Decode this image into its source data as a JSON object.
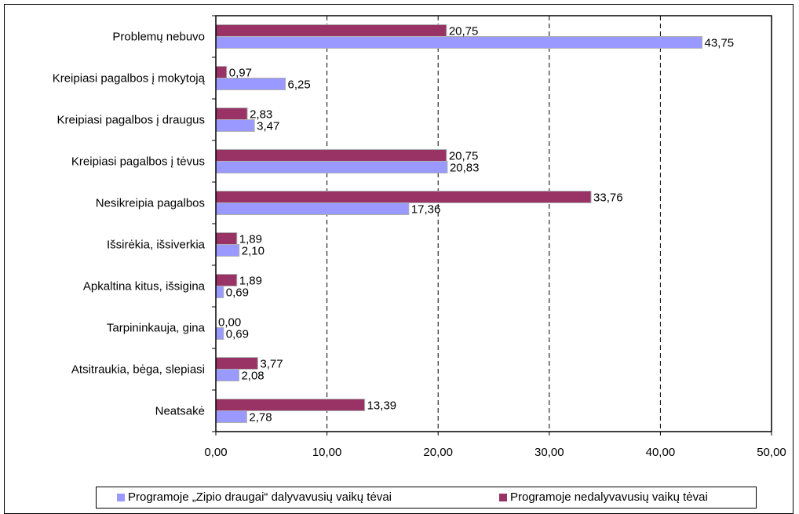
{
  "chart_data": {
    "type": "bar",
    "orientation": "horizontal",
    "categories": [
      "Problemų nebuvo",
      "Kreipiasi pagalbos į mokytoją",
      "Kreipiasi pagalbos į draugus",
      "Kreipiasi pagalbos į tėvus",
      "Nesikreipia pagalbos",
      "Išsirėkia, išsiverkia",
      "Apkaltina kitus, išsigina",
      "Tarpininkauja, gina",
      "Atsitraukia, bėga, slepiasi",
      "Neatsakė"
    ],
    "series": [
      {
        "name": "Programoje nedalyvavusių vaikų tėvai",
        "color": "#993366",
        "values": [
          20.75,
          0.97,
          2.83,
          20.75,
          33.76,
          1.89,
          1.89,
          0.0,
          3.77,
          13.39
        ],
        "labels": [
          "20,75",
          "0,97",
          "2,83",
          "20,75",
          "33,76",
          "1,89",
          "1,89",
          "0,00",
          "3,77",
          "13,39"
        ]
      },
      {
        "name": "Programoje „Zipio draugai“ dalyvavusių vaikų tėvai",
        "color": "#9999FF",
        "values": [
          43.75,
          6.25,
          3.47,
          20.83,
          17.36,
          2.1,
          0.69,
          0.69,
          2.08,
          2.78
        ],
        "labels": [
          "43,75",
          "6,25",
          "3,47",
          "20,83",
          "17,36",
          "2,10",
          "0,69",
          "0,69",
          "2,08",
          "2,78"
        ]
      }
    ],
    "xlim": [
      0,
      50
    ],
    "xticks": [
      "0,00",
      "10,00",
      "20,00",
      "30,00",
      "40,00",
      "50,00"
    ],
    "grid": "vertical dashed",
    "legend_position": "bottom"
  },
  "legend": {
    "item1": "Programoje „Zipio draugai“ dalyvavusių vaikų tėvai",
    "item2": "Programoje nedalyvavusių vaikų tėvai"
  }
}
